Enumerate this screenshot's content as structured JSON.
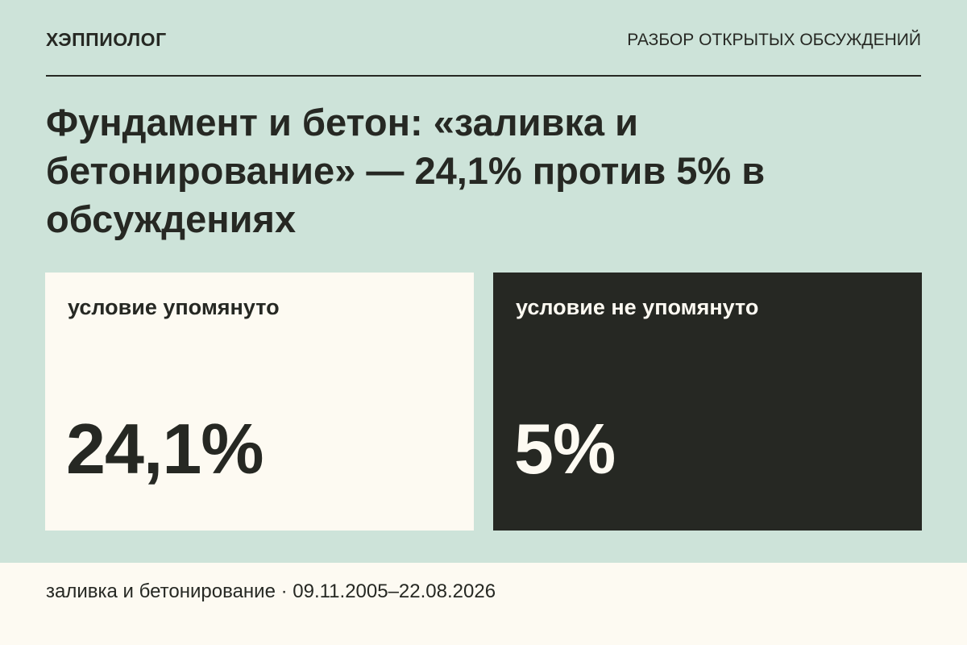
{
  "header": {
    "brand": "ХЭППИОЛОГ",
    "section": "РАЗБОР ОТКРЫТЫХ ОБСУЖДЕНИЙ"
  },
  "title": "Фундамент и бетон: «заливка и бетонирование» — 24,1% против 5% в обсуждениях",
  "cards": [
    {
      "label": "условие упомянуто",
      "value": "24,1%"
    },
    {
      "label": "условие не упомянуто",
      "value": "5%"
    }
  ],
  "footer": "заливка и бетонирование · 09.11.2005–22.08.2026"
}
